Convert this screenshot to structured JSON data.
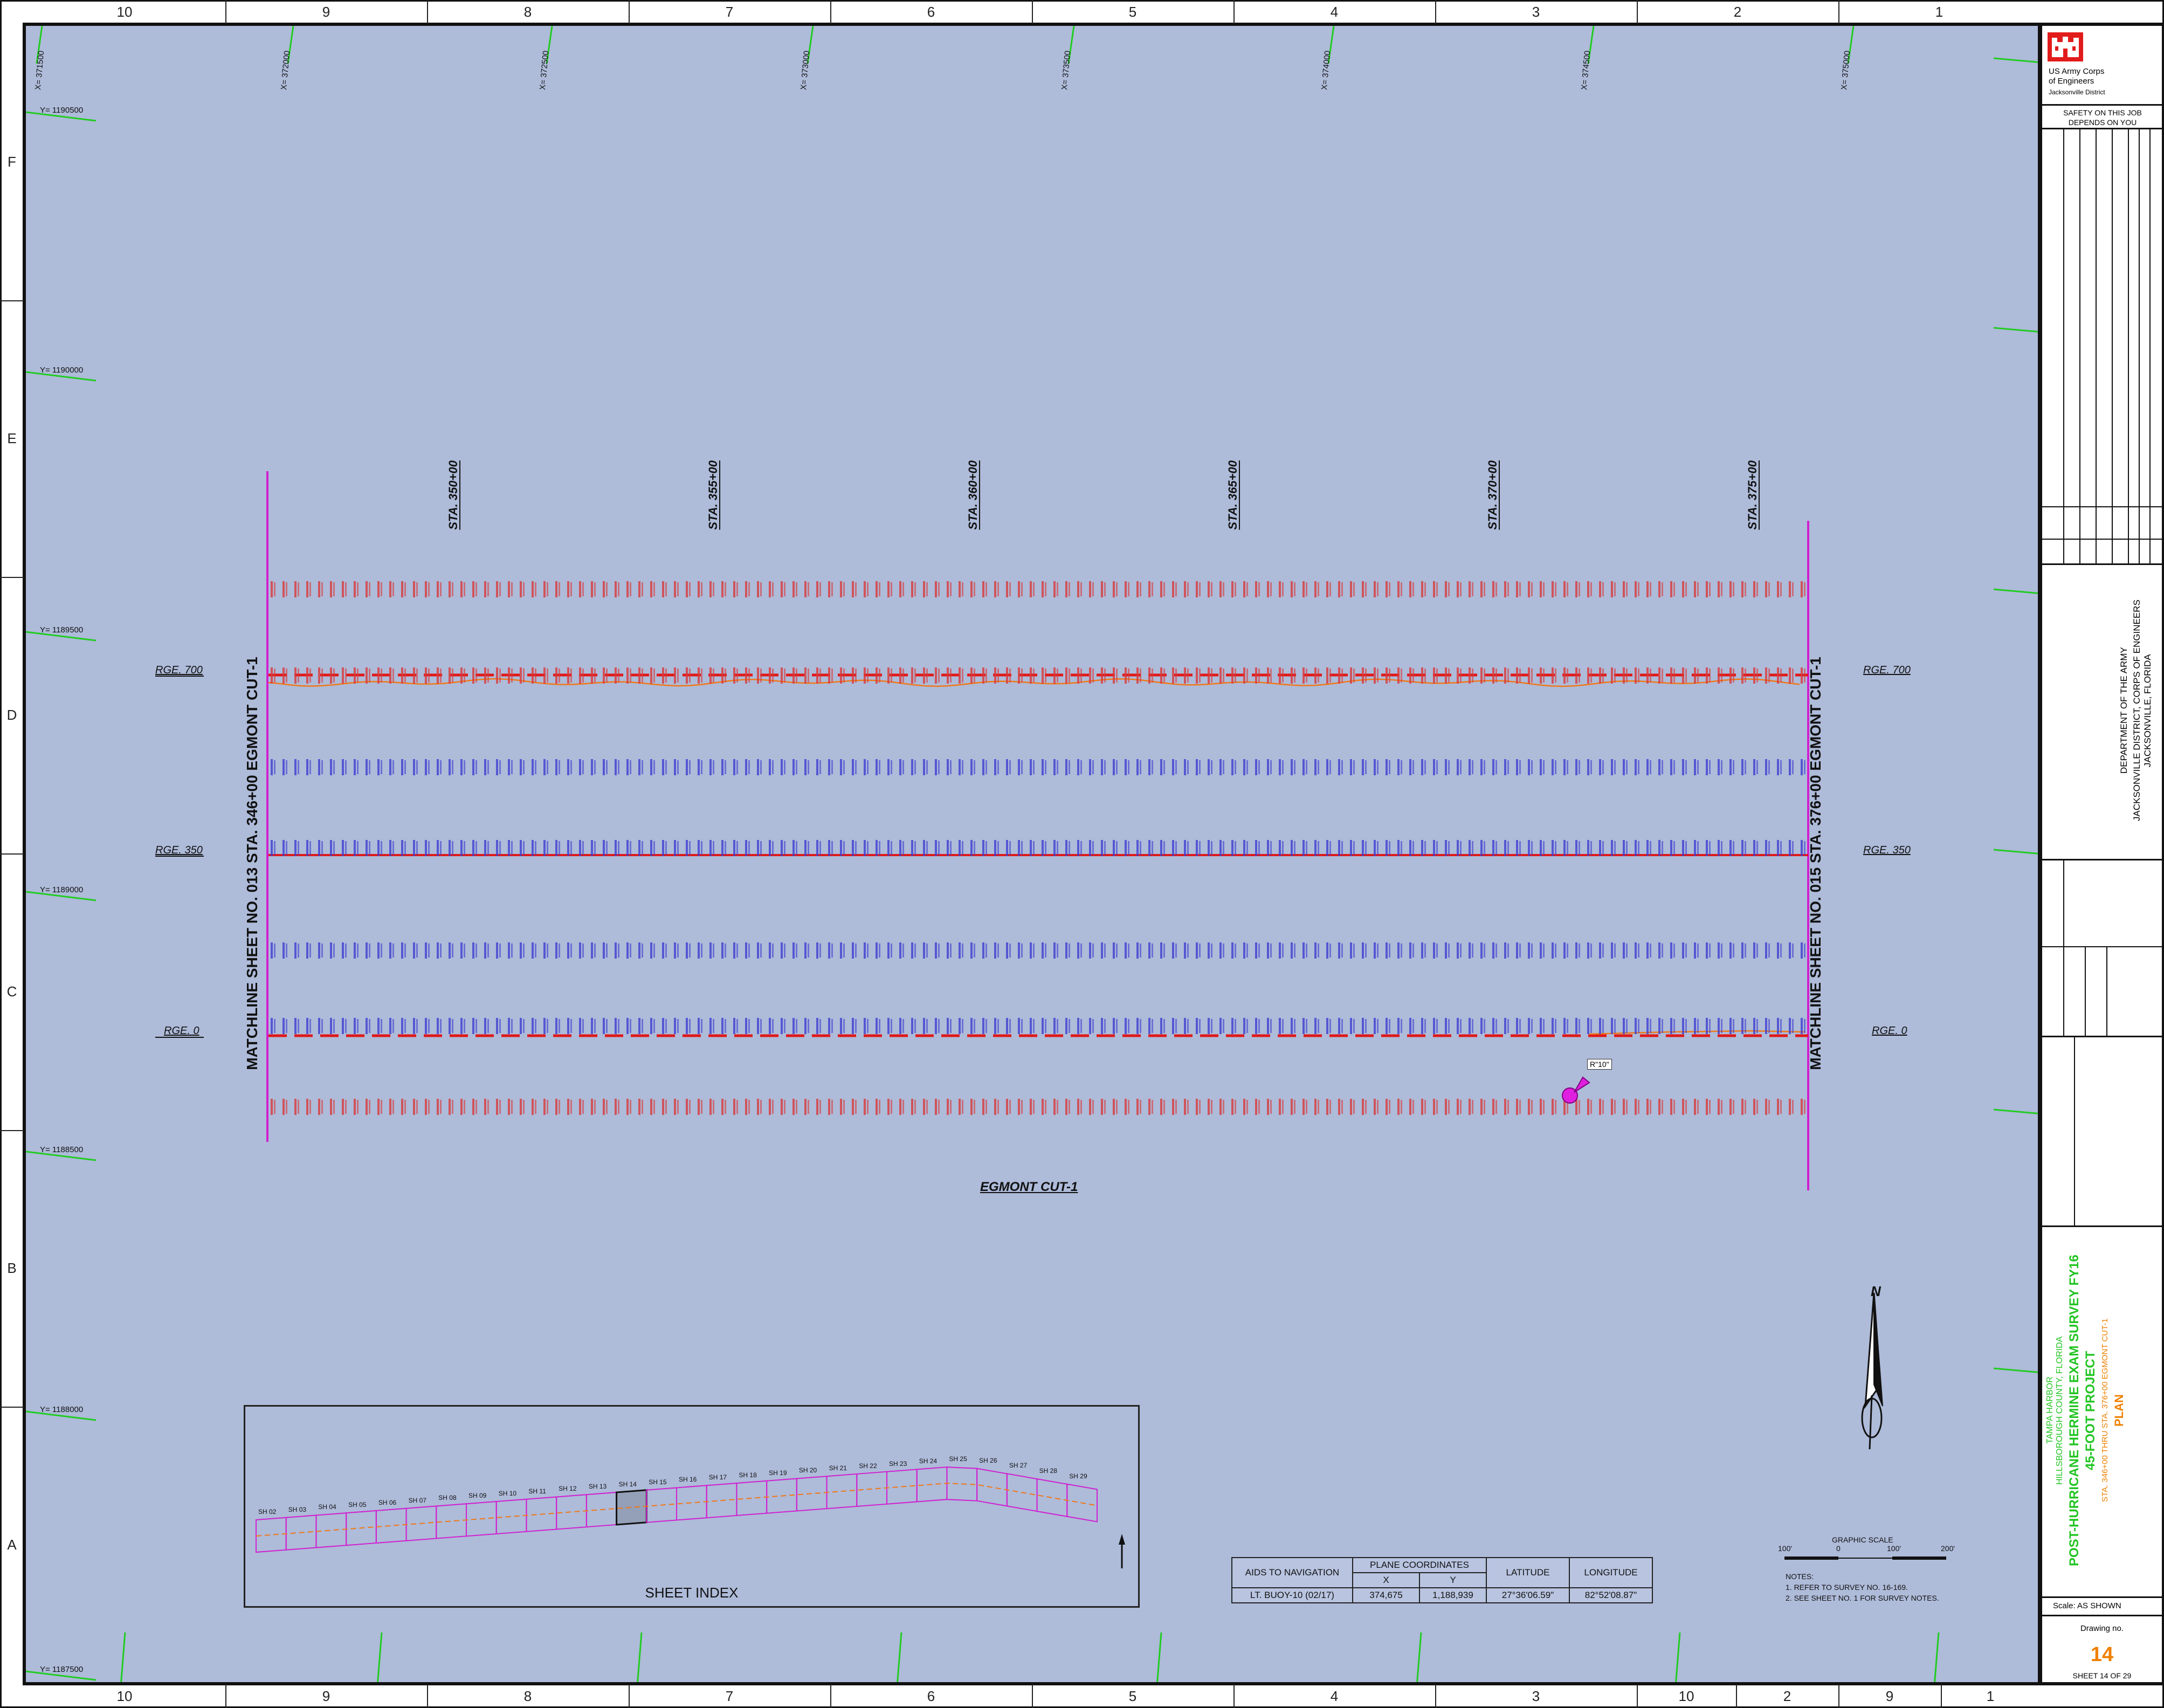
{
  "border": {
    "columns": [
      "10",
      "9",
      "8",
      "7",
      "6",
      "5",
      "4",
      "3",
      "2",
      "1"
    ],
    "bottom_columns": [
      "10",
      "9",
      "8",
      "7",
      "6",
      "5",
      "4",
      "3",
      "10",
      "2",
      "9",
      "1"
    ],
    "rows": [
      "F",
      "E",
      "D",
      "C",
      "B",
      "A"
    ]
  },
  "grid": {
    "x_labels": [
      "X= 371500",
      "X= 372000",
      "X= 372500",
      "X= 373000",
      "X= 373500",
      "X= 374000",
      "X= 374500",
      "X= 375000"
    ],
    "y_labels": [
      "Y= 1190500",
      "Y= 1190000",
      "Y= 1189500",
      "Y= 1189000",
      "Y= 1188500",
      "Y= 1188000",
      "Y= 1187500"
    ]
  },
  "stations": [
    "STA. 350+00",
    "STA. 355+00",
    "STA. 360+00",
    "STA. 365+00",
    "STA. 370+00",
    "STA. 375+00"
  ],
  "ranges": {
    "rge700": "RGE. 700",
    "rge350": "RGE. 350",
    "rge0": "RGE. 0"
  },
  "matchlines": {
    "left": "MATCHLINE SHEET NO. 013 STA. 346+00 EGMONT CUT-1",
    "right": "MATCHLINE SHEET NO. 015 STA. 376+00 EGMONT CUT-1"
  },
  "channel_label": "EGMONT CUT-1",
  "callout": "R\"10\"",
  "north_label": "N",
  "sheet_index": {
    "title": "SHEET INDEX",
    "sheets": [
      "SH 02",
      "SH 03",
      "SH 04",
      "SH 05",
      "SH 06",
      "SH 07",
      "SH 08",
      "SH 09",
      "SH 10",
      "SH 11",
      "SH 12",
      "SH 13",
      "SH 14",
      "SH 15",
      "SH 16",
      "SH 17",
      "SH 18",
      "SH 19",
      "SH 20",
      "SH 21",
      "SH 22",
      "SH 23",
      "SH 24",
      "SH 25",
      "SH 26",
      "SH 27",
      "SH 28",
      "SH 29"
    ]
  },
  "aids_table": {
    "h_aids": "AIDS TO NAVIGATION",
    "h_plane": "PLANE COORDINATES",
    "h_x": "X",
    "h_y": "Y",
    "h_lat": "LATITUDE",
    "h_lon": "LONGITUDE",
    "row": {
      "name": "LT. BUOY-10 (02/17)",
      "x": "374,675",
      "y": "1,188,939",
      "lat": "27°36'06.59\"",
      "lon": "82°52'08.87\""
    }
  },
  "graphic_scale": {
    "title": "GRAPHIC SCALE",
    "t0": "100'",
    "t1": "0",
    "t2": "100'",
    "t3": "200'"
  },
  "notes": {
    "title": "NOTES:",
    "n1": "1. REFER TO SURVEY NO. 16-169.",
    "n2": "2. SEE SHEET NO. 1 FOR SURVEY NOTES."
  },
  "title_block": {
    "agency_line1": "US Army Corps",
    "agency_line2": "of Engineers",
    "agency_line3": "Jacksonville District",
    "safety": "SAFETY ON THIS JOB DEPENDS ON YOU",
    "dept_line1": "DEPARTMENT OF THE ARMY",
    "dept_line2": "JACKSONVILLE DISTRICT, CORPS OF ENGINEERS",
    "dept_line3": "JACKSONVILLE, FLORIDA",
    "project_line1": "TAMPA HARBOR",
    "project_line2": "HILLSBOROUGH COUNTY, FLORIDA",
    "project_line3": "POST-HURRICANE HERMINE EXAM SURVEY FY16",
    "project_line4": "45-FOOT PROJECT",
    "project_line5": "STA. 346+00 THRU STA. 376+00 EGMONT CUT-1",
    "project_line6": "PLAN",
    "scale": "Scale:  AS SHOWN",
    "drawing_no_label": "Drawing no.",
    "drawing_no": "14",
    "sheet": "SHEET  14  OF  29",
    "colors": {
      "green": "#22c422",
      "orange": "#f08000"
    }
  }
}
